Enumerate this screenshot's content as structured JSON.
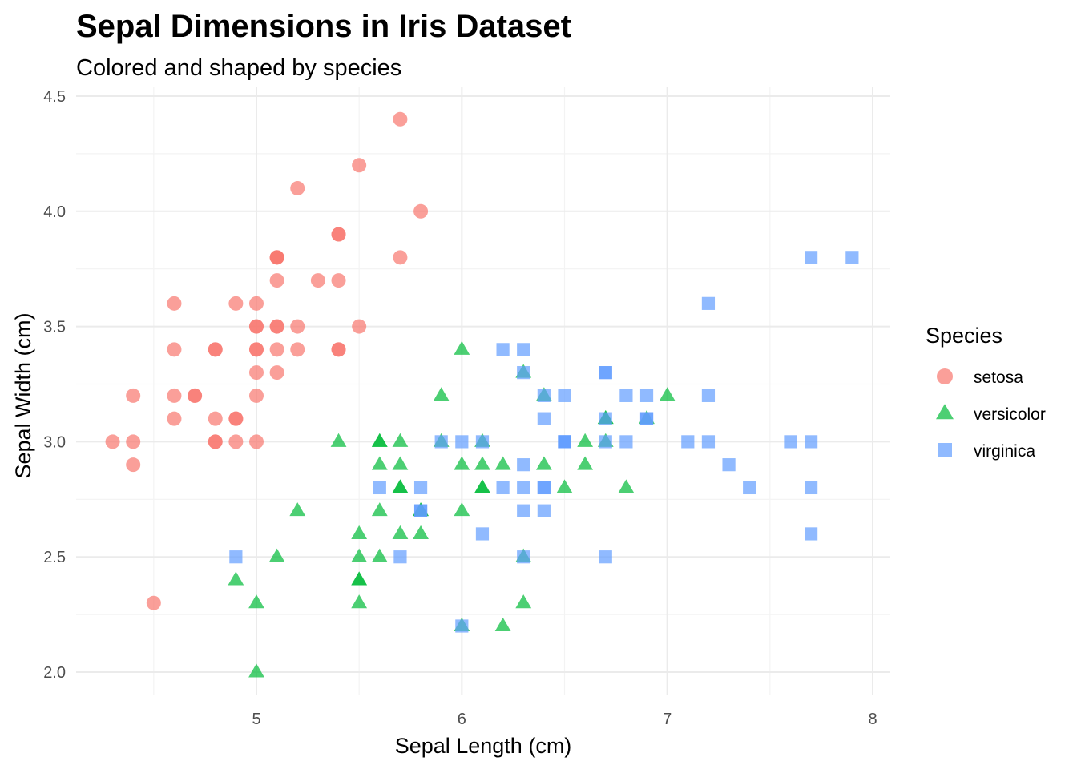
{
  "chart_data": {
    "type": "scatter",
    "title": "Sepal Dimensions in Iris Dataset",
    "subtitle": "Colored and shaped by species",
    "xlabel": "Sepal Length (cm)",
    "ylabel": "Sepal Width (cm)",
    "xlim": [
      4.3,
      7.9
    ],
    "ylim": [
      2.0,
      4.4
    ],
    "x_ticks": [
      5,
      6,
      7,
      8
    ],
    "y_ticks": [
      "2.0",
      "2.5",
      "3.0",
      "3.5",
      "4.0",
      "4.5"
    ],
    "grid": true,
    "legend": {
      "title": "Species",
      "position": "right"
    },
    "series": [
      {
        "name": "setosa",
        "shape": "circle",
        "color": "#F8766D",
        "points": [
          [
            5.1,
            3.5
          ],
          [
            4.9,
            3.0
          ],
          [
            4.7,
            3.2
          ],
          [
            4.6,
            3.1
          ],
          [
            5.0,
            3.6
          ],
          [
            5.4,
            3.9
          ],
          [
            4.6,
            3.4
          ],
          [
            5.0,
            3.4
          ],
          [
            4.4,
            2.9
          ],
          [
            4.9,
            3.1
          ],
          [
            5.4,
            3.7
          ],
          [
            4.8,
            3.4
          ],
          [
            4.8,
            3.0
          ],
          [
            4.3,
            3.0
          ],
          [
            5.8,
            4.0
          ],
          [
            5.7,
            4.4
          ],
          [
            5.4,
            3.9
          ],
          [
            5.1,
            3.5
          ],
          [
            5.7,
            3.8
          ],
          [
            5.1,
            3.8
          ],
          [
            5.4,
            3.4
          ],
          [
            5.1,
            3.7
          ],
          [
            4.6,
            3.6
          ],
          [
            5.1,
            3.3
          ],
          [
            4.8,
            3.4
          ],
          [
            5.0,
            3.0
          ],
          [
            5.0,
            3.4
          ],
          [
            5.2,
            3.5
          ],
          [
            5.2,
            3.4
          ],
          [
            4.7,
            3.2
          ],
          [
            4.8,
            3.1
          ],
          [
            5.4,
            3.4
          ],
          [
            5.2,
            4.1
          ],
          [
            5.5,
            4.2
          ],
          [
            4.9,
            3.1
          ],
          [
            5.0,
            3.2
          ],
          [
            5.5,
            3.5
          ],
          [
            4.9,
            3.6
          ],
          [
            4.4,
            3.0
          ],
          [
            5.1,
            3.4
          ],
          [
            5.0,
            3.5
          ],
          [
            4.5,
            2.3
          ],
          [
            4.4,
            3.2
          ],
          [
            5.0,
            3.5
          ],
          [
            5.1,
            3.8
          ],
          [
            4.8,
            3.0
          ],
          [
            5.1,
            3.8
          ],
          [
            4.6,
            3.2
          ],
          [
            5.3,
            3.7
          ],
          [
            5.0,
            3.3
          ]
        ]
      },
      {
        "name": "versicolor",
        "shape": "triangle",
        "color": "#00BA38",
        "points": [
          [
            7.0,
            3.2
          ],
          [
            6.4,
            3.2
          ],
          [
            6.9,
            3.1
          ],
          [
            5.5,
            2.3
          ],
          [
            6.5,
            2.8
          ],
          [
            5.7,
            2.8
          ],
          [
            6.3,
            3.3
          ],
          [
            4.9,
            2.4
          ],
          [
            6.6,
            2.9
          ],
          [
            5.2,
            2.7
          ],
          [
            5.0,
            2.0
          ],
          [
            5.9,
            3.0
          ],
          [
            6.0,
            2.2
          ],
          [
            6.1,
            2.9
          ],
          [
            5.6,
            2.9
          ],
          [
            6.7,
            3.1
          ],
          [
            5.6,
            3.0
          ],
          [
            5.8,
            2.7
          ],
          [
            6.2,
            2.2
          ],
          [
            5.6,
            2.5
          ],
          [
            5.9,
            3.2
          ],
          [
            6.1,
            2.8
          ],
          [
            6.3,
            2.5
          ],
          [
            6.1,
            2.8
          ],
          [
            6.4,
            2.9
          ],
          [
            6.6,
            3.0
          ],
          [
            6.8,
            2.8
          ],
          [
            6.7,
            3.0
          ],
          [
            6.0,
            2.9
          ],
          [
            5.7,
            2.6
          ],
          [
            5.5,
            2.4
          ],
          [
            5.5,
            2.4
          ],
          [
            5.8,
            2.7
          ],
          [
            6.0,
            2.7
          ],
          [
            5.4,
            3.0
          ],
          [
            6.0,
            3.4
          ],
          [
            6.7,
            3.1
          ],
          [
            6.3,
            2.3
          ],
          [
            5.6,
            3.0
          ],
          [
            5.5,
            2.5
          ],
          [
            5.5,
            2.6
          ],
          [
            6.1,
            3.0
          ],
          [
            5.8,
            2.6
          ],
          [
            5.0,
            2.3
          ],
          [
            5.6,
            2.7
          ],
          [
            5.7,
            3.0
          ],
          [
            5.7,
            2.9
          ],
          [
            6.2,
            2.9
          ],
          [
            5.1,
            2.5
          ],
          [
            5.7,
            2.8
          ]
        ]
      },
      {
        "name": "virginica",
        "shape": "square",
        "color": "#619CFF",
        "points": [
          [
            6.3,
            3.3
          ],
          [
            5.8,
            2.7
          ],
          [
            7.1,
            3.0
          ],
          [
            6.3,
            2.9
          ],
          [
            6.5,
            3.0
          ],
          [
            7.6,
            3.0
          ],
          [
            4.9,
            2.5
          ],
          [
            7.3,
            2.9
          ],
          [
            6.7,
            2.5
          ],
          [
            7.2,
            3.6
          ],
          [
            6.5,
            3.2
          ],
          [
            6.4,
            2.7
          ],
          [
            6.8,
            3.0
          ],
          [
            5.7,
            2.5
          ],
          [
            5.8,
            2.8
          ],
          [
            6.4,
            3.2
          ],
          [
            6.5,
            3.0
          ],
          [
            7.7,
            3.8
          ],
          [
            7.7,
            2.6
          ],
          [
            6.0,
            2.2
          ],
          [
            6.9,
            3.2
          ],
          [
            5.6,
            2.8
          ],
          [
            7.7,
            2.8
          ],
          [
            6.3,
            2.7
          ],
          [
            6.7,
            3.3
          ],
          [
            7.2,
            3.2
          ],
          [
            6.2,
            2.8
          ],
          [
            6.1,
            3.0
          ],
          [
            6.4,
            2.8
          ],
          [
            7.2,
            3.0
          ],
          [
            7.4,
            2.8
          ],
          [
            7.9,
            3.8
          ],
          [
            6.4,
            2.8
          ],
          [
            6.3,
            2.8
          ],
          [
            6.1,
            2.6
          ],
          [
            7.7,
            3.0
          ],
          [
            6.3,
            3.4
          ],
          [
            6.4,
            3.1
          ],
          [
            6.0,
            3.0
          ],
          [
            6.9,
            3.1
          ],
          [
            6.7,
            3.1
          ],
          [
            6.9,
            3.1
          ],
          [
            5.8,
            2.7
          ],
          [
            6.8,
            3.2
          ],
          [
            6.7,
            3.3
          ],
          [
            6.7,
            3.0
          ],
          [
            6.3,
            2.5
          ],
          [
            6.5,
            3.0
          ],
          [
            6.2,
            3.4
          ],
          [
            5.9,
            3.0
          ]
        ]
      }
    ]
  }
}
